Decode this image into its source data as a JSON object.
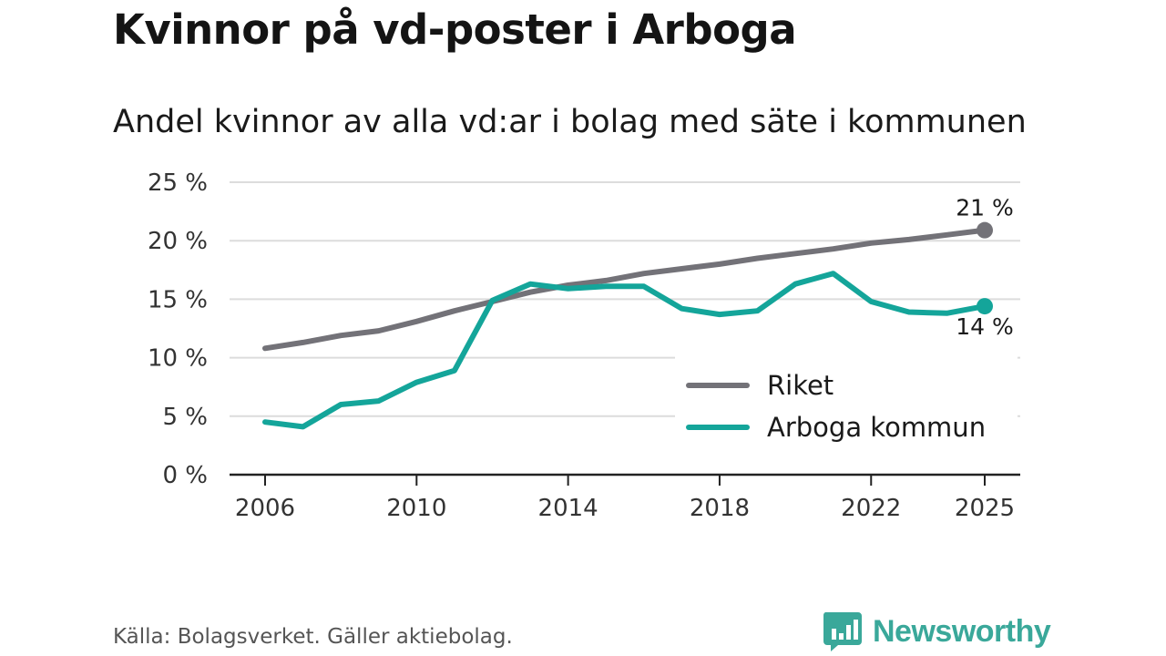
{
  "title": "Kvinnor på vd-poster i Arboga",
  "subtitle": "Andel kvinnor av alla vd:ar i bolag med säte i kommunen",
  "source": "Källa: Bolagsverket. Gäller aktiebolag.",
  "brand": {
    "name": "Newsworthy",
    "color": "#3aa89a",
    "icon": "bar-chart-logo-icon"
  },
  "chart_data": {
    "type": "line",
    "title": "Kvinnor på vd-poster i Arboga",
    "subtitle": "Andel kvinnor av alla vd:ar i bolag med säte i kommunen",
    "xlabel": "",
    "ylabel": "",
    "x": [
      2006,
      2007,
      2008,
      2009,
      2010,
      2011,
      2012,
      2013,
      2014,
      2015,
      2016,
      2017,
      2018,
      2019,
      2020,
      2021,
      2022,
      2023,
      2024,
      2025
    ],
    "x_ticks": [
      "2006",
      "2010",
      "2014",
      "2018",
      "2022",
      "2025"
    ],
    "ylim": [
      0,
      25
    ],
    "y_ticks": [
      0,
      5,
      10,
      15,
      20,
      25
    ],
    "y_tick_labels": [
      "0 %",
      "5 %",
      "10 %",
      "15 %",
      "20 %",
      "25 %"
    ],
    "grid": true,
    "legend_position": "bottom-right",
    "series": [
      {
        "name": "Riket",
        "color": "#737278",
        "values": [
          10.8,
          11.3,
          11.9,
          12.3,
          13.1,
          14.0,
          14.8,
          15.6,
          16.2,
          16.6,
          17.2,
          17.6,
          18.0,
          18.5,
          18.9,
          19.3,
          19.8,
          20.1,
          20.5,
          20.9
        ],
        "end_label": "21 %"
      },
      {
        "name": "Arboga kommun",
        "color": "#14a59a",
        "values": [
          4.5,
          4.1,
          6.0,
          6.3,
          7.9,
          8.9,
          14.9,
          16.3,
          15.9,
          16.1,
          16.1,
          14.2,
          13.7,
          14.0,
          16.3,
          17.2,
          14.8,
          13.9,
          13.8,
          14.4
        ],
        "end_label": "14 %"
      }
    ]
  }
}
